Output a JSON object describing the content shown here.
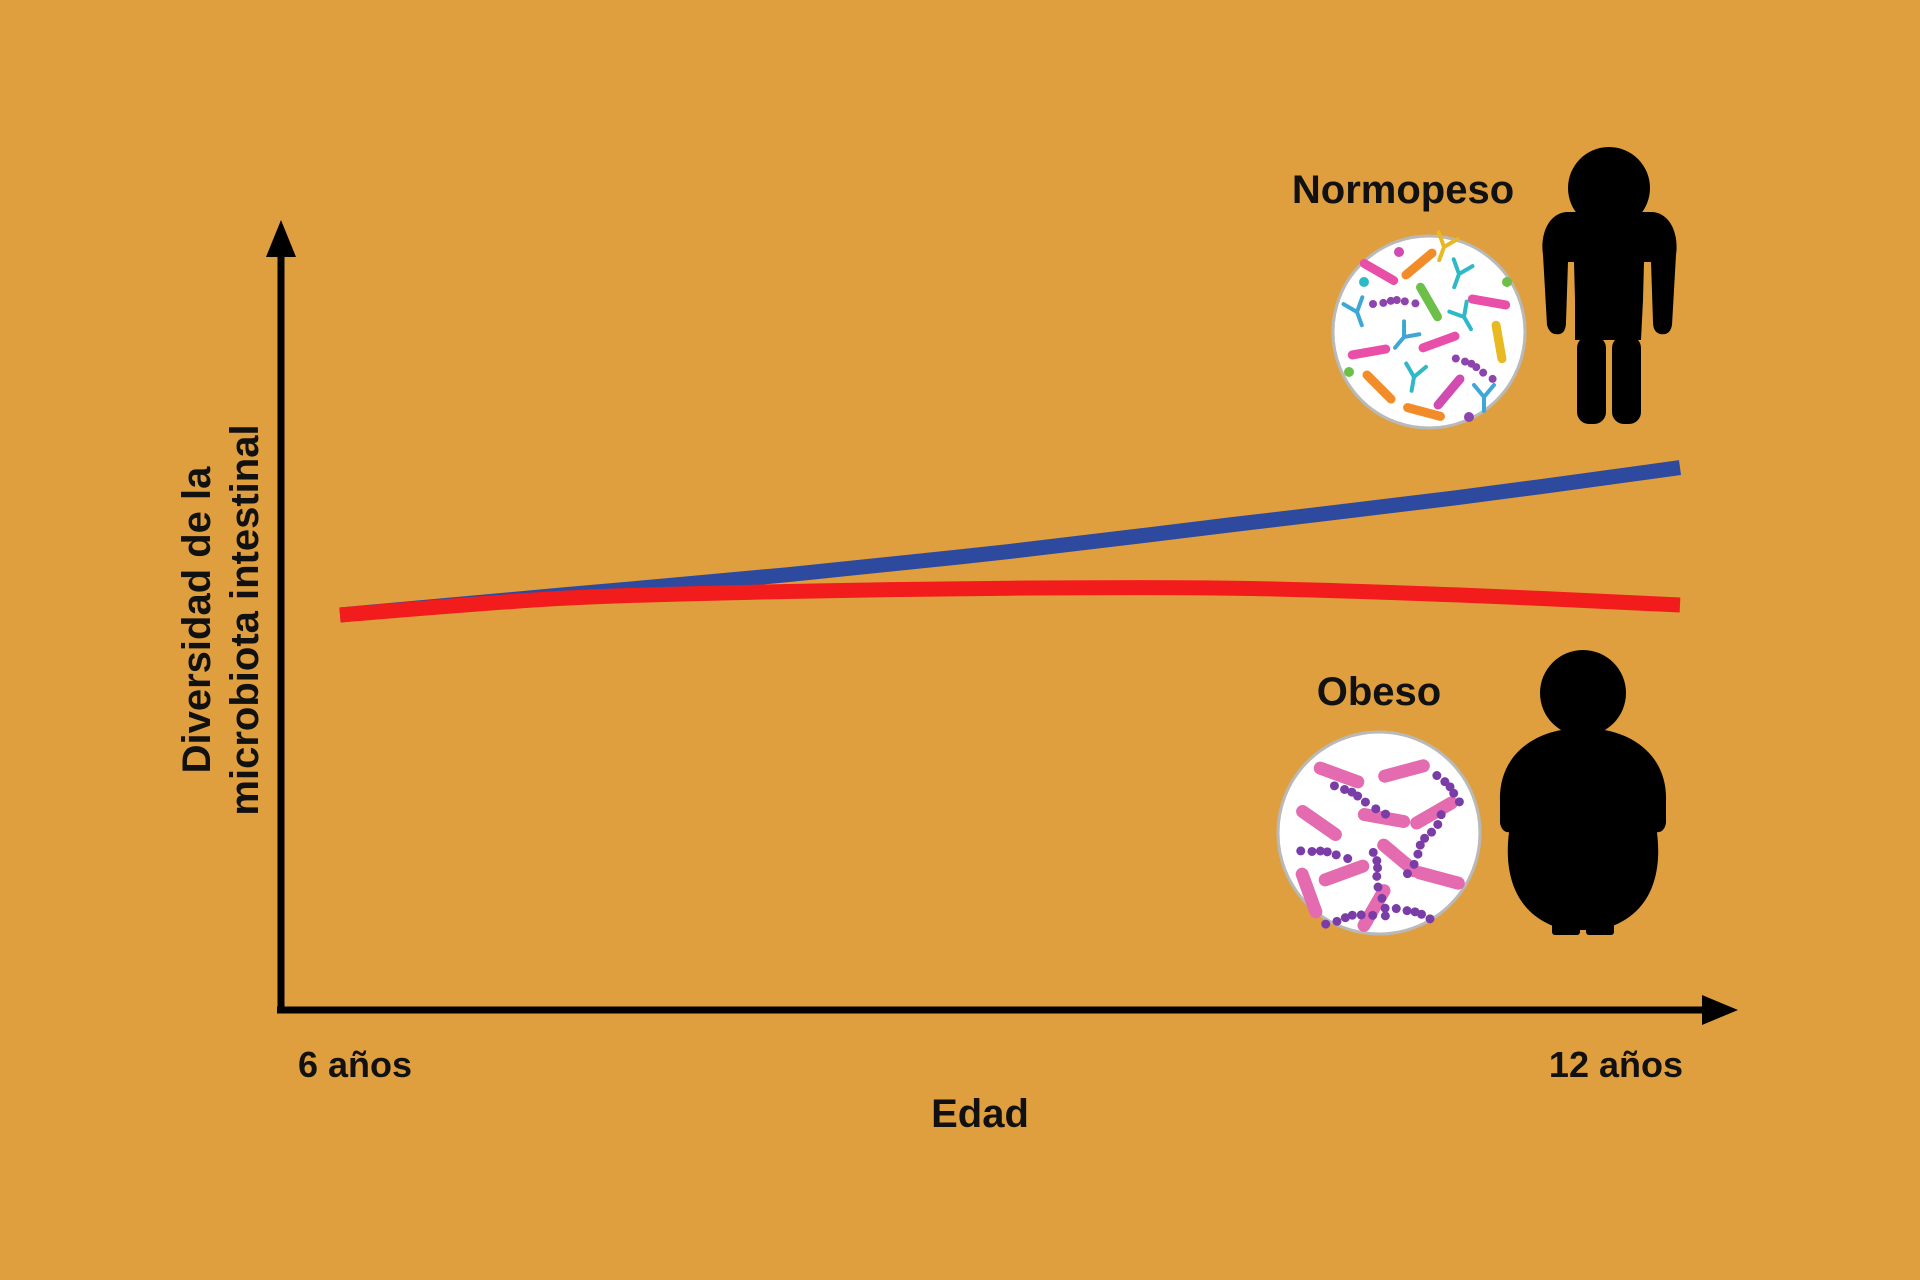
{
  "colors": {
    "background": "#E09F3E",
    "axis": "#000000",
    "normopeso_line": "#2E4A9E",
    "obeso_line": "#F21C1C"
  },
  "chart_data": {
    "type": "line",
    "x_unit": "años",
    "x": [
      6,
      7,
      8,
      9,
      10,
      11,
      12
    ],
    "xlim": [
      6,
      12
    ],
    "xticks": [
      "6 años",
      "12 años"
    ],
    "xlabel": "Edad",
    "ylabel_lines": [
      "Diversidad de la",
      "microbiota intestinal"
    ],
    "ylim": [
      0,
      100
    ],
    "y_axis_has_numbers": false,
    "grid": false,
    "legend": "none",
    "series": [
      {
        "name": "Normopeso",
        "color": "#2E4A9E",
        "values": [
          50,
          53,
          56,
          59.5,
          63.5,
          67.5,
          72
        ],
        "icon": "person-normal-weight-icon",
        "microbiota": "high-diversity"
      },
      {
        "name": "Obeso",
        "color": "#F21C1C",
        "values": [
          50,
          52.5,
          53.5,
          54,
          54,
          53,
          51.5
        ],
        "icon": "person-obese-icon",
        "microbiota": "low-diversity"
      }
    ]
  },
  "labels": {
    "normopeso": "Normopeso",
    "obeso": "Obeso"
  }
}
